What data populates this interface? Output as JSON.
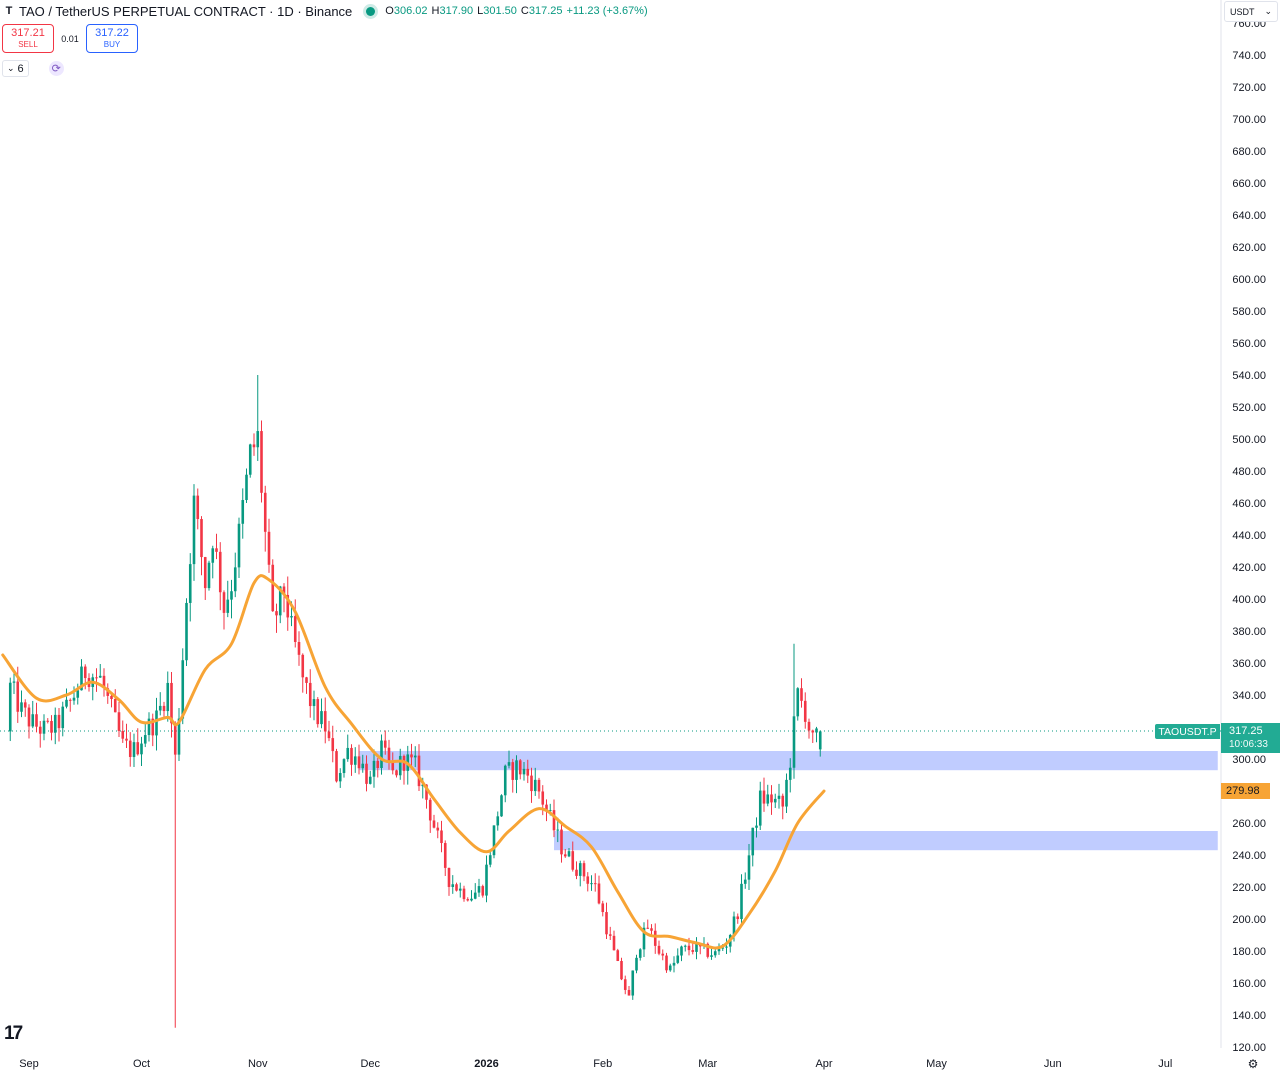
{
  "header": {
    "title": "TAO / TetherUS PERPETUAL CONTRACT · 1D · Binance",
    "ohlc": [
      {
        "k": "O",
        "v": "306.02"
      },
      {
        "k": "H",
        "v": "317.90"
      },
      {
        "k": "L",
        "v": "301.50"
      },
      {
        "k": "C",
        "v": "317.25"
      },
      {
        "k": "",
        "v": "+11.23 (+3.67%)"
      }
    ]
  },
  "trade": {
    "sell_price": "317.21",
    "sell_label": "SELL",
    "spread": "0.01",
    "buy_price": "317.22",
    "buy_label": "BUY"
  },
  "indicators": {
    "count": "6"
  },
  "price_scale": {
    "currency": "USDT",
    "ticker": "TAOUSDT.P",
    "last_price": "317.25",
    "countdown": "10:06:33",
    "ma_value": "279.98"
  },
  "colors": {
    "up": "#089981",
    "down": "#f23645",
    "ma": "#f7a435",
    "zone": "#b5c3ff",
    "last": "#22ab94"
  },
  "chart_data": {
    "type": "candlestick",
    "y_ticks": [
      "120.00",
      "140.00",
      "160.00",
      "180.00",
      "200.00",
      "220.00",
      "240.00",
      "260.00",
      "280.00",
      "300.00",
      "320.00",
      "340.00",
      "360.00",
      "380.00",
      "400.00",
      "420.00",
      "440.00",
      "460.00",
      "480.00",
      "500.00",
      "520.00",
      "540.00",
      "560.00",
      "580.00",
      "600.00",
      "620.00",
      "640.00",
      "660.00",
      "680.00",
      "700.00",
      "720.00",
      "740.00",
      "760.00"
    ],
    "ylim": [
      120,
      760
    ],
    "x_ticks": [
      {
        "label": "Sep",
        "date": "2025-09-01"
      },
      {
        "label": "Oct",
        "date": "2025-10-01"
      },
      {
        "label": "Nov",
        "date": "2025-11-01"
      },
      {
        "label": "Dec",
        "date": "2025-12-01"
      },
      {
        "label": "2026",
        "date": "2026-01-01"
      },
      {
        "label": "Feb",
        "date": "2026-02-01"
      },
      {
        "label": "Mar",
        "date": "2026-03-01"
      },
      {
        "label": "Apr",
        "date": "2026-04-01"
      },
      {
        "label": "May",
        "date": "2026-05-01"
      },
      {
        "label": "Jun",
        "date": "2026-06-01"
      },
      {
        "label": "Jul",
        "date": "2026-07-01"
      }
    ],
    "closes": [
      {
        "date": "2025-08-27",
        "close": 345
      },
      {
        "date": "2025-08-30",
        "close": 330
      },
      {
        "date": "2025-09-02",
        "close": 322
      },
      {
        "date": "2025-09-05",
        "close": 318
      },
      {
        "date": "2025-09-08",
        "close": 320
      },
      {
        "date": "2025-09-12",
        "close": 335
      },
      {
        "date": "2025-09-16",
        "close": 355
      },
      {
        "date": "2025-09-20",
        "close": 350
      },
      {
        "date": "2025-09-23",
        "close": 330
      },
      {
        "date": "2025-09-26",
        "close": 308
      },
      {
        "date": "2025-09-29",
        "close": 305
      },
      {
        "date": "2025-10-02",
        "close": 318
      },
      {
        "date": "2025-10-05",
        "close": 325
      },
      {
        "date": "2025-10-08",
        "close": 345
      },
      {
        "date": "2025-10-10",
        "close": 300
      },
      {
        "date": "2025-10-11",
        "close": 330
      },
      {
        "date": "2025-10-13",
        "close": 400
      },
      {
        "date": "2025-10-15",
        "close": 460
      },
      {
        "date": "2025-10-18",
        "close": 410
      },
      {
        "date": "2025-10-20",
        "close": 440
      },
      {
        "date": "2025-10-23",
        "close": 395
      },
      {
        "date": "2025-10-25",
        "close": 410
      },
      {
        "date": "2025-10-27",
        "close": 440
      },
      {
        "date": "2025-10-30",
        "close": 490
      },
      {
        "date": "2025-11-01",
        "close": 500
      },
      {
        "date": "2025-11-03",
        "close": 440
      },
      {
        "date": "2025-11-05",
        "close": 385
      },
      {
        "date": "2025-11-08",
        "close": 405
      },
      {
        "date": "2025-11-10",
        "close": 380
      },
      {
        "date": "2025-11-13",
        "close": 350
      },
      {
        "date": "2025-11-16",
        "close": 330
      },
      {
        "date": "2025-11-19",
        "close": 320
      },
      {
        "date": "2025-11-22",
        "close": 290
      },
      {
        "date": "2025-11-25",
        "close": 305
      },
      {
        "date": "2025-11-28",
        "close": 300
      },
      {
        "date": "2025-12-01",
        "close": 285
      },
      {
        "date": "2025-12-04",
        "close": 305
      },
      {
        "date": "2025-12-07",
        "close": 290
      },
      {
        "date": "2025-12-10",
        "close": 300
      },
      {
        "date": "2025-12-13",
        "close": 295
      },
      {
        "date": "2025-12-16",
        "close": 275
      },
      {
        "date": "2025-12-19",
        "close": 250
      },
      {
        "date": "2025-12-22",
        "close": 225
      },
      {
        "date": "2025-12-25",
        "close": 218
      },
      {
        "date": "2025-12-28",
        "close": 215
      },
      {
        "date": "2025-12-31",
        "close": 220
      },
      {
        "date": "2026-01-03",
        "close": 255
      },
      {
        "date": "2026-01-06",
        "close": 290
      },
      {
        "date": "2026-01-09",
        "close": 295
      },
      {
        "date": "2026-01-12",
        "close": 290
      },
      {
        "date": "2026-01-15",
        "close": 280
      },
      {
        "date": "2026-01-18",
        "close": 262
      },
      {
        "date": "2026-01-21",
        "close": 245
      },
      {
        "date": "2026-01-24",
        "close": 235
      },
      {
        "date": "2026-01-27",
        "close": 228
      },
      {
        "date": "2026-01-30",
        "close": 220
      },
      {
        "date": "2026-02-02",
        "close": 195
      },
      {
        "date": "2026-02-05",
        "close": 170
      },
      {
        "date": "2026-02-08",
        "close": 150
      },
      {
        "date": "2026-02-10",
        "close": 180
      },
      {
        "date": "2026-02-13",
        "close": 195
      },
      {
        "date": "2026-02-16",
        "close": 180
      },
      {
        "date": "2026-02-19",
        "close": 168
      },
      {
        "date": "2026-02-22",
        "close": 180
      },
      {
        "date": "2026-02-25",
        "close": 182
      },
      {
        "date": "2026-02-28",
        "close": 180
      },
      {
        "date": "2026-03-03",
        "close": 178
      },
      {
        "date": "2026-03-06",
        "close": 185
      },
      {
        "date": "2026-03-09",
        "close": 205
      },
      {
        "date": "2026-03-12",
        "close": 240
      },
      {
        "date": "2026-03-15",
        "close": 275
      },
      {
        "date": "2026-03-18",
        "close": 275
      },
      {
        "date": "2026-03-21",
        "close": 270
      },
      {
        "date": "2026-03-23",
        "close": 300
      },
      {
        "date": "2026-03-25",
        "close": 340
      },
      {
        "date": "2026-03-27",
        "close": 330
      },
      {
        "date": "2026-03-29",
        "close": 310
      },
      {
        "date": "2026-03-31",
        "close": 317.25
      }
    ],
    "moving_average": [
      {
        "date": "2025-08-25",
        "value": 365
      },
      {
        "date": "2025-09-03",
        "value": 338
      },
      {
        "date": "2025-09-11",
        "value": 340
      },
      {
        "date": "2025-09-18",
        "value": 348
      },
      {
        "date": "2025-09-25",
        "value": 337
      },
      {
        "date": "2025-10-01",
        "value": 323
      },
      {
        "date": "2025-10-08",
        "value": 326
      },
      {
        "date": "2025-10-11",
        "value": 323
      },
      {
        "date": "2025-10-18",
        "value": 356
      },
      {
        "date": "2025-10-25",
        "value": 372
      },
      {
        "date": "2025-10-31",
        "value": 410
      },
      {
        "date": "2025-11-04",
        "value": 412
      },
      {
        "date": "2025-11-11",
        "value": 392
      },
      {
        "date": "2025-11-19",
        "value": 345
      },
      {
        "date": "2025-11-26",
        "value": 322
      },
      {
        "date": "2025-12-04",
        "value": 300
      },
      {
        "date": "2025-12-11",
        "value": 297
      },
      {
        "date": "2025-12-18",
        "value": 275
      },
      {
        "date": "2025-12-25",
        "value": 254
      },
      {
        "date": "2026-01-01",
        "value": 242
      },
      {
        "date": "2026-01-07",
        "value": 255
      },
      {
        "date": "2026-01-15",
        "value": 269
      },
      {
        "date": "2026-01-22",
        "value": 258
      },
      {
        "date": "2026-01-29",
        "value": 245
      },
      {
        "date": "2026-02-05",
        "value": 217
      },
      {
        "date": "2026-02-12",
        "value": 192
      },
      {
        "date": "2026-02-19",
        "value": 189
      },
      {
        "date": "2026-02-26",
        "value": 185
      },
      {
        "date": "2026-03-05",
        "value": 183
      },
      {
        "date": "2026-03-12",
        "value": 203
      },
      {
        "date": "2026-03-19",
        "value": 230
      },
      {
        "date": "2026-03-25",
        "value": 260
      },
      {
        "date": "2026-04-01",
        "value": 279.98
      }
    ],
    "zones": [
      {
        "from": "2025-11-28",
        "to": "2026-07-15",
        "low": 293,
        "high": 305
      },
      {
        "from": "2026-01-19",
        "to": "2026-07-15",
        "low": 243,
        "high": 255
      }
    ]
  }
}
